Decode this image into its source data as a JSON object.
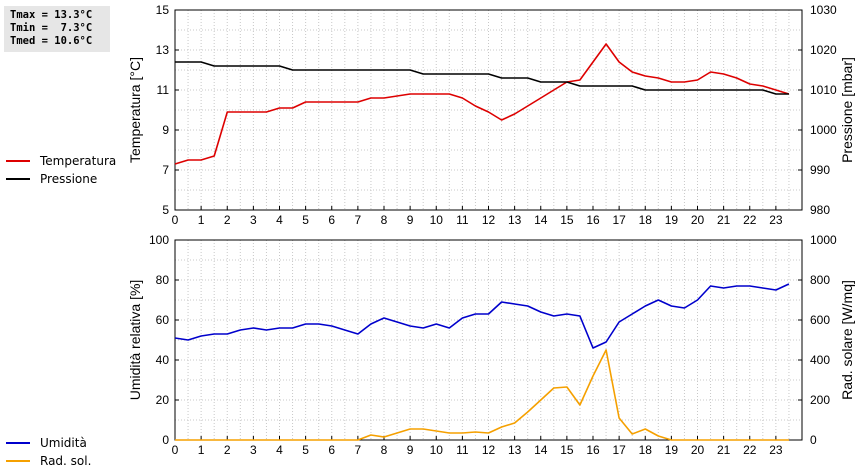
{
  "stats": {
    "lines": [
      "Tmax = 13.3°C",
      "Tmin =  7.3°C",
      "Tmed = 10.6°C"
    ]
  },
  "legend_top": [
    {
      "label": "Temperatura",
      "color": "#dd0000"
    },
    {
      "label": "Pressione",
      "color": "#000000"
    }
  ],
  "legend_bottom": [
    {
      "label": "Umidità",
      "color": "#0000cc"
    },
    {
      "label": "Rad. sol.",
      "color": "#f5a000"
    }
  ],
  "chart_data": [
    {
      "type": "line",
      "title": "",
      "xlabel": "",
      "xlim": [
        0,
        24
      ],
      "xticks": [
        0,
        1,
        2,
        3,
        4,
        5,
        6,
        7,
        8,
        9,
        10,
        11,
        12,
        13,
        14,
        15,
        16,
        17,
        18,
        19,
        20,
        21,
        22,
        23
      ],
      "ylabel": "Temperatura [°C]",
      "ylim": [
        5,
        15
      ],
      "yticks": [
        5,
        7,
        9,
        11,
        13,
        15
      ],
      "y2label": "Pressione [mbar]",
      "y2lim": [
        980,
        1030
      ],
      "y2ticks": [
        980,
        990,
        1000,
        1010,
        1020,
        1030
      ],
      "grid": true,
      "series": [
        {
          "name": "Temperatura",
          "axis": "left",
          "color": "#dd0000",
          "x": [
            0,
            0.5,
            1,
            1.5,
            2,
            2.5,
            3,
            3.5,
            4,
            4.5,
            5,
            5.5,
            6,
            6.5,
            7,
            7.5,
            8,
            8.5,
            9,
            9.5,
            10,
            10.5,
            11,
            11.5,
            12,
            12.5,
            13,
            13.5,
            14,
            14.5,
            15,
            15.5,
            16,
            16.5,
            17,
            17.5,
            18,
            18.5,
            19,
            19.5,
            20,
            20.5,
            21,
            21.5,
            22,
            22.5,
            23,
            23.5
          ],
          "values": [
            7.3,
            7.5,
            7.5,
            7.7,
            9.9,
            9.9,
            9.9,
            9.9,
            10.1,
            10.1,
            10.4,
            10.4,
            10.4,
            10.4,
            10.4,
            10.6,
            10.6,
            10.7,
            10.8,
            10.8,
            10.8,
            10.8,
            10.6,
            10.2,
            9.9,
            9.5,
            9.8,
            10.2,
            10.6,
            11.0,
            11.4,
            11.5,
            12.4,
            13.3,
            12.4,
            11.9,
            11.7,
            11.6,
            11.4,
            11.4,
            11.5,
            11.9,
            11.8,
            11.6,
            11.3,
            11.2,
            11.0,
            10.8
          ]
        },
        {
          "name": "Pressione",
          "axis": "right",
          "color": "#000000",
          "x": [
            0,
            0.5,
            1,
            1.5,
            2,
            2.5,
            3,
            3.5,
            4,
            4.5,
            5,
            5.5,
            6,
            6.5,
            7,
            7.5,
            8,
            8.5,
            9,
            9.5,
            10,
            10.5,
            11,
            11.5,
            12,
            12.5,
            13,
            13.5,
            14,
            14.5,
            15,
            15.5,
            16,
            16.5,
            17,
            17.5,
            18,
            18.5,
            19,
            19.5,
            20,
            20.5,
            21,
            21.5,
            22,
            22.5,
            23,
            23.5
          ],
          "values": [
            1017,
            1017,
            1017,
            1016,
            1016,
            1016,
            1016,
            1016,
            1016,
            1015,
            1015,
            1015,
            1015,
            1015,
            1015,
            1015,
            1015,
            1015,
            1015,
            1014,
            1014,
            1014,
            1014,
            1014,
            1014,
            1013,
            1013,
            1013,
            1012,
            1012,
            1012,
            1011,
            1011,
            1011,
            1011,
            1011,
            1010,
            1010,
            1010,
            1010,
            1010,
            1010,
            1010,
            1010,
            1010,
            1010,
            1009,
            1009
          ]
        }
      ]
    },
    {
      "type": "line",
      "title": "",
      "xlabel": "",
      "xlim": [
        0,
        24
      ],
      "xticks": [
        0,
        1,
        2,
        3,
        4,
        5,
        6,
        7,
        8,
        9,
        10,
        11,
        12,
        13,
        14,
        15,
        16,
        17,
        18,
        19,
        20,
        21,
        22,
        23
      ],
      "ylabel": "Umidità relativa [%]",
      "ylim": [
        0,
        100
      ],
      "yticks": [
        0,
        20,
        40,
        60,
        80,
        100
      ],
      "y2label": "Rad. solare [W/mq]",
      "y2lim": [
        0,
        1000
      ],
      "y2ticks": [
        0,
        200,
        400,
        600,
        800,
        1000
      ],
      "grid": true,
      "series": [
        {
          "name": "Umidità",
          "axis": "left",
          "color": "#0000cc",
          "x": [
            0,
            0.5,
            1,
            1.5,
            2,
            2.5,
            3,
            3.5,
            4,
            4.5,
            5,
            5.5,
            6,
            6.5,
            7,
            7.5,
            8,
            8.5,
            9,
            9.5,
            10,
            10.5,
            11,
            11.5,
            12,
            12.5,
            13,
            13.5,
            14,
            14.5,
            15,
            15.5,
            16,
            16.5,
            17,
            17.5,
            18,
            18.5,
            19,
            19.5,
            20,
            20.5,
            21,
            21.5,
            22,
            22.5,
            23,
            23.5
          ],
          "values": [
            51,
            50,
            52,
            53,
            53,
            55,
            56,
            55,
            56,
            56,
            58,
            58,
            57,
            55,
            53,
            58,
            61,
            59,
            57,
            56,
            58,
            56,
            61,
            63,
            63,
            69,
            68,
            67,
            64,
            62,
            63,
            62,
            46,
            49,
            59,
            63,
            67,
            70,
            67,
            66,
            70,
            77,
            76,
            77,
            77,
            76,
            75,
            78
          ]
        },
        {
          "name": "Rad. sol.",
          "axis": "right",
          "color": "#f5a000",
          "x": [
            0,
            1,
            2,
            3,
            4,
            5,
            6,
            7,
            7.5,
            8,
            8.5,
            9,
            9.5,
            10,
            10.5,
            11,
            11.5,
            12,
            12.5,
            13,
            13.5,
            14,
            14.5,
            15,
            15.5,
            16,
            16.5,
            17,
            17.5,
            18,
            18.5,
            19,
            20,
            21,
            22,
            23,
            23.5
          ],
          "values": [
            0,
            0,
            0,
            0,
            0,
            0,
            0,
            0,
            25,
            15,
            35,
            55,
            55,
            45,
            35,
            35,
            40,
            35,
            65,
            85,
            140,
            200,
            260,
            265,
            175,
            320,
            450,
            110,
            30,
            55,
            20,
            0,
            0,
            0,
            0,
            0,
            0
          ]
        }
      ]
    }
  ]
}
